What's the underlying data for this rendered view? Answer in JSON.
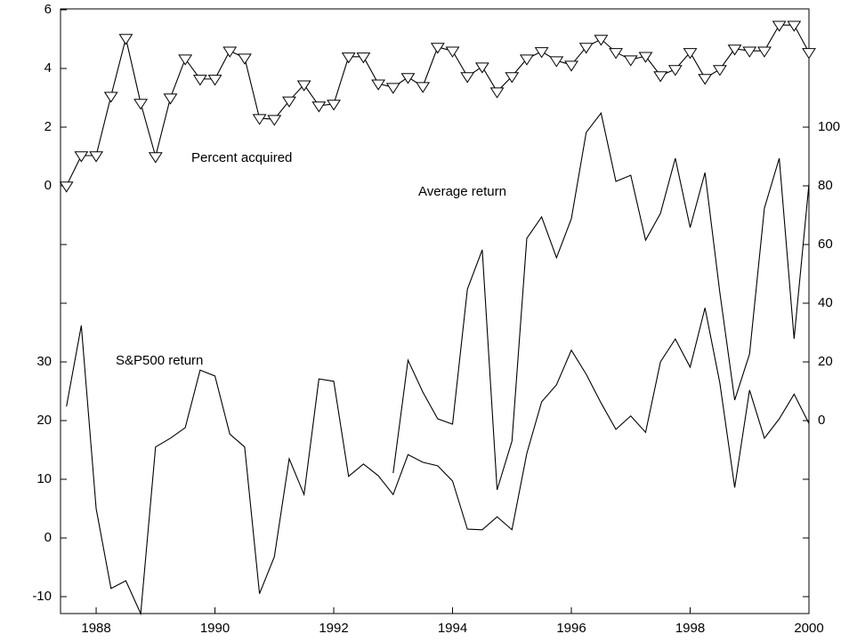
{
  "chart_data": {
    "type": "line",
    "x": [
      1987.5,
      1987.75,
      1988,
      1988.25,
      1988.5,
      1988.75,
      1989,
      1989.25,
      1989.5,
      1989.75,
      1990,
      1990.25,
      1990.5,
      1990.75,
      1991,
      1991.25,
      1991.5,
      1991.75,
      1992,
      1992.25,
      1992.5,
      1992.75,
      1993,
      1993.25,
      1993.5,
      1993.75,
      1994,
      1994.25,
      1994.5,
      1994.75,
      1995,
      1995.25,
      1995.5,
      1995.75,
      1996,
      1996.25,
      1996.5,
      1996.75,
      1997,
      1997.25,
      1997.5,
      1997.75,
      1998,
      1998.25,
      1998.5,
      1998.75,
      1999,
      1999.25,
      1999.5,
      1999.75,
      2000
    ],
    "xlim": [
      1987.4,
      2000
    ],
    "xticks": [
      1988,
      1990,
      1992,
      1994,
      1996,
      1998,
      2000
    ],
    "ylim": [
      0,
      6
    ],
    "yticks": [
      0,
      2,
      4,
      6
    ],
    "yminorticks": [
      -4,
      -2
    ],
    "y2lim": [
      0,
      100
    ],
    "y2ticks": [
      0,
      20,
      40,
      60,
      80,
      100
    ],
    "y2minorticks": [
      -60,
      -40,
      -20
    ],
    "y3lim": [
      -10,
      30
    ],
    "y3ticks": [
      -10,
      0,
      10,
      20,
      30
    ],
    "series": [
      {
        "name": "Percent acquired",
        "color": "#000000",
        "axis": "y",
        "marker": "triangle-down",
        "values": [
          0,
          1.03,
          1.03,
          3.06,
          5.03,
          2.82,
          1.0,
          3.0,
          4.33,
          3.64,
          3.64,
          4.6,
          4.36,
          2.3,
          2.27,
          2.9,
          3.45,
          2.73,
          2.79,
          4.4,
          4.4,
          3.48,
          3.36,
          3.7,
          3.39,
          4.73,
          4.6,
          3.73,
          4.06,
          3.21,
          3.73,
          4.33,
          4.58,
          4.27,
          4.12,
          4.73,
          5.0,
          4.55,
          4.3,
          4.42,
          3.76,
          3.97,
          4.55,
          3.67,
          3.97,
          4.67,
          4.6,
          4.6,
          5.48,
          5.48,
          4.55
        ]
      },
      {
        "name": "Average return",
        "color": "#000000",
        "axis": "y2",
        "values": [
          null,
          null,
          null,
          null,
          null,
          null,
          null,
          null,
          null,
          null,
          null,
          null,
          null,
          null,
          null,
          null,
          null,
          null,
          null,
          null,
          null,
          null,
          -17.9,
          20.6,
          9.7,
          0.6,
          -1.2,
          44.8,
          58.2,
          -23.6,
          -7.0,
          62.1,
          69.4,
          55.5,
          68.8,
          98.2,
          104.8,
          81.5,
          83.6,
          61.5,
          70.6,
          89.4,
          65.8,
          84.5,
          43.6,
          7.0,
          22.7,
          72.4,
          89.4,
          27.9,
          80.6
        ]
      },
      {
        "name": "S&P500 return",
        "color": "#000000",
        "axis": "y3",
        "values": [
          22.4,
          36.2,
          5.0,
          -8.6,
          -7.3,
          -12.9,
          15.5,
          17.0,
          18.8,
          28.6,
          27.6,
          17.7,
          15.5,
          -9.5,
          -3.2,
          13.5,
          7.4,
          27.1,
          26.7,
          10.5,
          12.6,
          10.6,
          7.4,
          14.2,
          12.9,
          12.3,
          9.7,
          1.5,
          1.4,
          3.6,
          1.4,
          14.4,
          23.2,
          26.1,
          32.0,
          27.9,
          23.0,
          18.5,
          20.8,
          18.0,
          30.0,
          33.9,
          29.1,
          39.2,
          26.4,
          8.6,
          25.2,
          17.0,
          20.3,
          24.5,
          19.5
        ]
      }
    ]
  }
}
